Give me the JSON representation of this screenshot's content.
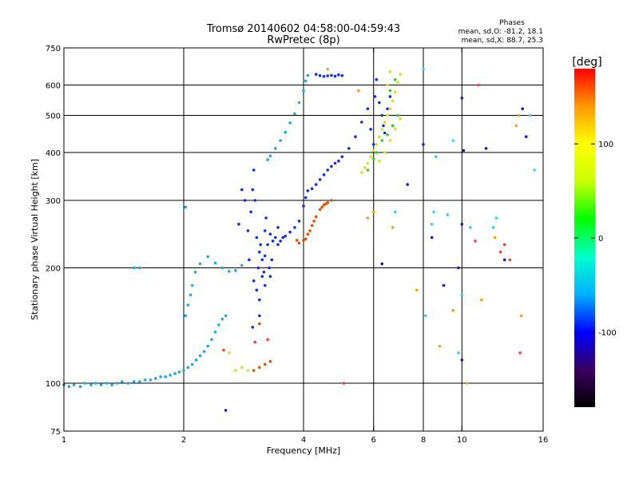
{
  "chart_data": {
    "type": "scatter",
    "title": "Tromsø 20140602 04:58:00-04:59:43",
    "subtitle": "RwPretec (8p)",
    "xlabel": "Frequency [MHz]",
    "ylabel": "Stationary phase Virtual Height [km]",
    "x_scale": "log",
    "y_scale": "log",
    "xlim": [
      1,
      16
    ],
    "ylim": [
      75,
      750
    ],
    "x_ticks": [
      1,
      2,
      4,
      6,
      8,
      10,
      16
    ],
    "y_ticks": [
      75,
      100,
      200,
      300,
      400,
      500,
      600,
      750
    ],
    "x_gridlines": [
      2,
      4,
      6,
      8,
      10
    ],
    "y_gridlines": [
      100,
      200,
      300,
      400,
      500,
      600
    ],
    "grid": true,
    "stats": {
      "heading": "Phases",
      "line1": "mean, sd,O: -81.2, 18.1",
      "line2": "mean, sd,X:  88.7, 25.3"
    },
    "colorbar": {
      "label": "[deg]",
      "ticks": [
        100,
        0,
        -100
      ],
      "tick_labels": [
        "100",
        "0",
        "-100"
      ],
      "range": [
        -180,
        180
      ],
      "colors": [
        "#000000",
        "#3a0060",
        "#0000ff",
        "#00b0ff",
        "#00ffcc",
        "#00ff00",
        "#c8ff00",
        "#ffff00",
        "#ff9900",
        "#ff0000"
      ]
    },
    "series": [
      {
        "color": "#1ea8e0",
        "points": [
          [
            1.0,
            99
          ],
          [
            1.03,
            98
          ],
          [
            1.06,
            99
          ],
          [
            1.1,
            98
          ],
          [
            1.13,
            100
          ],
          [
            1.17,
            99
          ],
          [
            1.2,
            100
          ],
          [
            1.24,
            99
          ],
          [
            1.28,
            100
          ],
          [
            1.32,
            99
          ],
          [
            1.36,
            100
          ],
          [
            1.4,
            101
          ],
          [
            1.45,
            100
          ],
          [
            1.5,
            101
          ],
          [
            1.55,
            101
          ],
          [
            1.6,
            102
          ],
          [
            1.65,
            102
          ],
          [
            1.7,
            103
          ],
          [
            1.75,
            104
          ],
          [
            1.8,
            104
          ],
          [
            1.85,
            105
          ],
          [
            1.9,
            106
          ],
          [
            1.95,
            107
          ],
          [
            2.0,
            108
          ],
          [
            2.05,
            110
          ],
          [
            2.1,
            112
          ],
          [
            2.15,
            115
          ],
          [
            2.2,
            118
          ],
          [
            2.25,
            121
          ],
          [
            2.3,
            125
          ],
          [
            2.35,
            130
          ],
          [
            2.4,
            136
          ],
          [
            2.45,
            142
          ],
          [
            2.5,
            147
          ],
          [
            2.55,
            150
          ],
          [
            2.02,
            150
          ],
          [
            2.05,
            160
          ],
          [
            2.08,
            170
          ],
          [
            2.1,
            180
          ],
          [
            2.14,
            195
          ],
          [
            2.3,
            214
          ],
          [
            2.4,
            206
          ],
          [
            2.5,
            200
          ],
          [
            2.6,
            196
          ],
          [
            2.7,
            197
          ],
          [
            2.8,
            203
          ],
          [
            1.5,
            200
          ],
          [
            1.55,
            200
          ],
          [
            2.02,
            288
          ],
          [
            2.2,
            205
          ],
          [
            3.25,
            383
          ],
          [
            3.3,
            392
          ],
          [
            3.4,
            410
          ],
          [
            3.5,
            430
          ],
          [
            3.6,
            452
          ],
          [
            3.7,
            478
          ],
          [
            3.8,
            505
          ],
          [
            3.9,
            540
          ],
          [
            4.0,
            580
          ],
          [
            4.05,
            615
          ],
          [
            4.1,
            636
          ]
        ]
      },
      {
        "color": "#1030e0",
        "points": [
          [
            2.9,
            250
          ],
          [
            2.92,
            210
          ],
          [
            2.95,
            280
          ],
          [
            2.98,
            320
          ],
          [
            3.0,
            360
          ],
          [
            3.02,
            300
          ],
          [
            3.05,
            240
          ],
          [
            3.08,
            200
          ],
          [
            3.1,
            220
          ],
          [
            3.12,
            230
          ],
          [
            3.15,
            210
          ],
          [
            3.18,
            195
          ],
          [
            3.2,
            250
          ],
          [
            3.22,
            270
          ],
          [
            3.25,
            230
          ],
          [
            3.28,
            200
          ],
          [
            3.3,
            190
          ],
          [
            3.33,
            210
          ],
          [
            3.35,
            235
          ],
          [
            3.4,
            240
          ],
          [
            3.45,
            230
          ],
          [
            3.5,
            235
          ],
          [
            3.55,
            240
          ],
          [
            3.6,
            242
          ],
          [
            3.7,
            248
          ],
          [
            3.8,
            255
          ],
          [
            3.9,
            265
          ],
          [
            4.0,
            290
          ],
          [
            4.05,
            305
          ],
          [
            4.1,
            318
          ],
          [
            4.2,
            322
          ],
          [
            4.3,
            330
          ],
          [
            4.4,
            340
          ],
          [
            4.5,
            350
          ],
          [
            4.6,
            360
          ],
          [
            4.7,
            368
          ],
          [
            4.8,
            375
          ],
          [
            4.9,
            380
          ],
          [
            5.0,
            390
          ],
          [
            5.2,
            410
          ],
          [
            5.4,
            440
          ],
          [
            5.6,
            480
          ],
          [
            5.8,
            520
          ],
          [
            5.9,
            460
          ],
          [
            6.0,
            420
          ],
          [
            6.05,
            560
          ],
          [
            6.1,
            620
          ],
          [
            6.2,
            540
          ],
          [
            6.3,
            500
          ],
          [
            6.35,
            470
          ],
          [
            6.4,
            450
          ],
          [
            6.5,
            520
          ],
          [
            6.6,
            560
          ],
          [
            4.3,
            640
          ],
          [
            4.4,
            635
          ],
          [
            4.5,
            632
          ],
          [
            4.6,
            634
          ],
          [
            4.7,
            636
          ],
          [
            4.8,
            633
          ],
          [
            4.9,
            638
          ],
          [
            5.0,
            635
          ],
          [
            3.0,
            185
          ],
          [
            3.05,
            175
          ],
          [
            3.1,
            165
          ],
          [
            3.15,
            190
          ],
          [
            2.98,
            140
          ],
          [
            3.1,
            150
          ],
          [
            3.2,
            180
          ],
          [
            2.8,
            320
          ],
          [
            2.85,
            300
          ],
          [
            2.75,
            260
          ],
          [
            3.2,
            215
          ],
          [
            3.45,
            255
          ],
          [
            3.3,
            245
          ]
        ]
      },
      {
        "color": "#e05000",
        "points": [
          [
            4.0,
            236
          ],
          [
            4.05,
            238
          ],
          [
            4.1,
            245
          ],
          [
            4.2,
            258
          ],
          [
            4.3,
            272
          ],
          [
            4.4,
            284
          ],
          [
            4.5,
            292
          ],
          [
            4.6,
            296
          ],
          [
            4.7,
            300
          ],
          [
            3.9,
            232
          ],
          [
            3.85,
            236
          ],
          [
            4.15,
            250
          ],
          [
            4.25,
            265
          ],
          [
            4.45,
            288
          ],
          [
            4.55,
            294
          ],
          [
            3.0,
            108
          ],
          [
            3.1,
            110
          ],
          [
            3.2,
            112
          ],
          [
            3.3,
            114
          ],
          [
            3.1,
            143
          ]
        ]
      },
      {
        "color": "#d8e020",
        "points": [
          [
            5.6,
            355
          ],
          [
            5.7,
            365
          ],
          [
            5.8,
            375
          ],
          [
            5.9,
            390
          ],
          [
            6.0,
            405
          ],
          [
            6.1,
            420
          ],
          [
            6.2,
            440
          ],
          [
            6.3,
            460
          ],
          [
            6.4,
            480
          ],
          [
            6.5,
            500
          ],
          [
            6.6,
            520
          ],
          [
            6.7,
            545
          ],
          [
            6.8,
            575
          ],
          [
            6.9,
            610
          ],
          [
            7.0,
            640
          ],
          [
            6.2,
            380
          ],
          [
            6.4,
            400
          ],
          [
            6.6,
            430
          ],
          [
            6.8,
            460
          ],
          [
            7.0,
            490
          ],
          [
            6.5,
            600
          ],
          [
            6.6,
            650
          ],
          [
            2.7,
            108
          ],
          [
            2.8,
            110
          ],
          [
            2.9,
            108
          ],
          [
            2.6,
            120
          ]
        ]
      },
      {
        "color": "#38d020",
        "points": [
          [
            6.3,
            430
          ],
          [
            6.5,
            445
          ],
          [
            6.7,
            470
          ],
          [
            6.9,
            500
          ],
          [
            6.1,
            400
          ],
          [
            6.0,
            385
          ],
          [
            5.8,
            360
          ],
          [
            6.6,
            580
          ],
          [
            6.8,
            620
          ]
        ]
      },
      {
        "color": "#ff3b3b",
        "points": [
          [
            2.52,
            122
          ],
          [
            3.02,
            128
          ],
          [
            3.25,
            130
          ],
          [
            5.05,
            100
          ],
          [
            12.5,
            220
          ],
          [
            13.2,
            210
          ],
          [
            14.0,
            120
          ],
          [
            10.8,
            235
          ],
          [
            12.8,
            230
          ],
          [
            11.0,
            600
          ]
        ]
      },
      {
        "color": "#30d0ff",
        "points": [
          [
            8.1,
            150
          ],
          [
            8.6,
            390
          ],
          [
            8.5,
            280
          ],
          [
            9.2,
            275
          ],
          [
            9.8,
            120
          ],
          [
            10.5,
            255
          ],
          [
            12.2,
            270
          ],
          [
            12.0,
            255
          ],
          [
            14.8,
            500
          ],
          [
            15.2,
            360
          ],
          [
            9.5,
            430
          ],
          [
            8.0,
            660
          ],
          [
            8.4,
            260
          ],
          [
            10.0,
            170
          ],
          [
            6.8,
            280
          ]
        ]
      },
      {
        "color": "#2010c0",
        "points": [
          [
            8.0,
            420
          ],
          [
            8.4,
            240
          ],
          [
            9.0,
            180
          ],
          [
            10.0,
            260
          ],
          [
            10.1,
            405
          ],
          [
            10.0,
            115
          ],
          [
            9.8,
            200
          ],
          [
            12.8,
            210
          ],
          [
            14.2,
            520
          ],
          [
            14.5,
            440
          ],
          [
            11.5,
            410
          ],
          [
            2.55,
            85
          ],
          [
            7.3,
            330
          ],
          [
            6.3,
            205
          ],
          [
            10.0,
            555
          ]
        ]
      },
      {
        "color": "#f0a020",
        "points": [
          [
            5.8,
            270
          ],
          [
            6.0,
            280
          ],
          [
            6.7,
            255
          ],
          [
            7.7,
            175
          ],
          [
            8.8,
            125
          ],
          [
            9.5,
            155
          ],
          [
            10.3,
            100
          ],
          [
            11.2,
            165
          ],
          [
            12.1,
            240
          ],
          [
            13.7,
            470
          ],
          [
            14.1,
            150
          ],
          [
            13.9,
            500
          ],
          [
            5.5,
            580
          ],
          [
            4.6,
            660
          ]
        ]
      }
    ]
  }
}
